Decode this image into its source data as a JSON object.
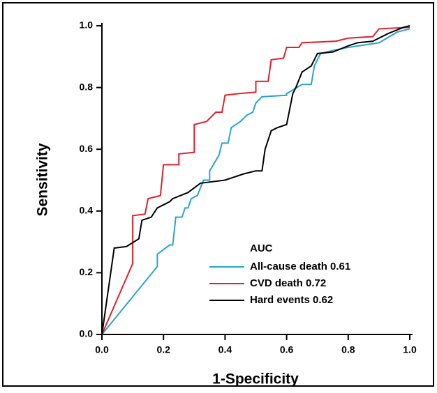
{
  "chart_data": {
    "type": "line",
    "xlabel": "1-Specificity",
    "ylabel": "Sensitivity",
    "xlim": [
      0,
      1
    ],
    "ylim": [
      0,
      1
    ],
    "xticks": [
      {
        "value": 0,
        "label": "0.0"
      },
      0.2,
      0.4,
      0.6,
      0.8,
      {
        "value": 1,
        "label": "1.0"
      }
    ],
    "yticks": [
      {
        "value": 0,
        "label": "0.0"
      },
      0.2,
      0.4,
      0.6,
      0.8,
      {
        "value": 1,
        "label": "1.0"
      }
    ],
    "legend_title": "AUC",
    "series": [
      {
        "name": "All-cause death 0.61",
        "color": "#27a6cb",
        "x": [
          0,
          0.18,
          0.18,
          0.22,
          0.23,
          0.24,
          0.26,
          0.27,
          0.28,
          0.29,
          0.31,
          0.33,
          0.35,
          0.35,
          0.38,
          0.39,
          0.41,
          0.42,
          0.45,
          0.47,
          0.49,
          0.5,
          0.52,
          0.6,
          0.6,
          0.65,
          0.68,
          0.69,
          0.71,
          0.75,
          0.8,
          0.9,
          0.96,
          1.0
        ],
        "values": [
          0,
          0.22,
          0.26,
          0.29,
          0.29,
          0.38,
          0.38,
          0.41,
          0.41,
          0.44,
          0.45,
          0.5,
          0.5,
          0.53,
          0.58,
          0.62,
          0.62,
          0.67,
          0.69,
          0.71,
          0.72,
          0.75,
          0.77,
          0.775,
          0.78,
          0.81,
          0.81,
          0.87,
          0.91,
          0.92,
          0.93,
          0.945,
          0.98,
          0.99
        ]
      },
      {
        "name": "CVD death 0.72",
        "color": "#e0202a",
        "x": [
          0,
          0.1,
          0.1,
          0.14,
          0.15,
          0.19,
          0.2,
          0.25,
          0.25,
          0.3,
          0.3,
          0.34,
          0.37,
          0.39,
          0.4,
          0.44,
          0.5,
          0.5,
          0.54,
          0.55,
          0.59,
          0.6,
          0.64,
          0.65,
          0.76,
          0.8,
          0.88,
          0.9,
          1.0
        ],
        "values": [
          0,
          0.23,
          0.385,
          0.39,
          0.44,
          0.45,
          0.55,
          0.55,
          0.585,
          0.59,
          0.68,
          0.69,
          0.72,
          0.72,
          0.775,
          0.78,
          0.785,
          0.82,
          0.82,
          0.89,
          0.895,
          0.93,
          0.93,
          0.945,
          0.95,
          0.96,
          0.965,
          0.99,
          0.995
        ]
      },
      {
        "name": "Hard events 0.62",
        "color": "#000000",
        "x": [
          0,
          0.04,
          0.08,
          0.12,
          0.13,
          0.16,
          0.18,
          0.2,
          0.22,
          0.23,
          0.28,
          0.3,
          0.32,
          0.4,
          0.43,
          0.46,
          0.5,
          0.52,
          0.53,
          0.55,
          0.57,
          0.6,
          0.62,
          0.63,
          0.65,
          0.68,
          0.7,
          0.75,
          0.8,
          0.83,
          0.88,
          0.93,
          0.98,
          1.0
        ],
        "values": [
          0,
          0.28,
          0.285,
          0.31,
          0.37,
          0.38,
          0.41,
          0.42,
          0.43,
          0.44,
          0.46,
          0.475,
          0.49,
          0.5,
          0.51,
          0.52,
          0.53,
          0.53,
          0.6,
          0.66,
          0.67,
          0.68,
          0.78,
          0.8,
          0.85,
          0.87,
          0.91,
          0.915,
          0.935,
          0.945,
          0.95,
          0.975,
          0.995,
          1.0
        ]
      }
    ]
  }
}
